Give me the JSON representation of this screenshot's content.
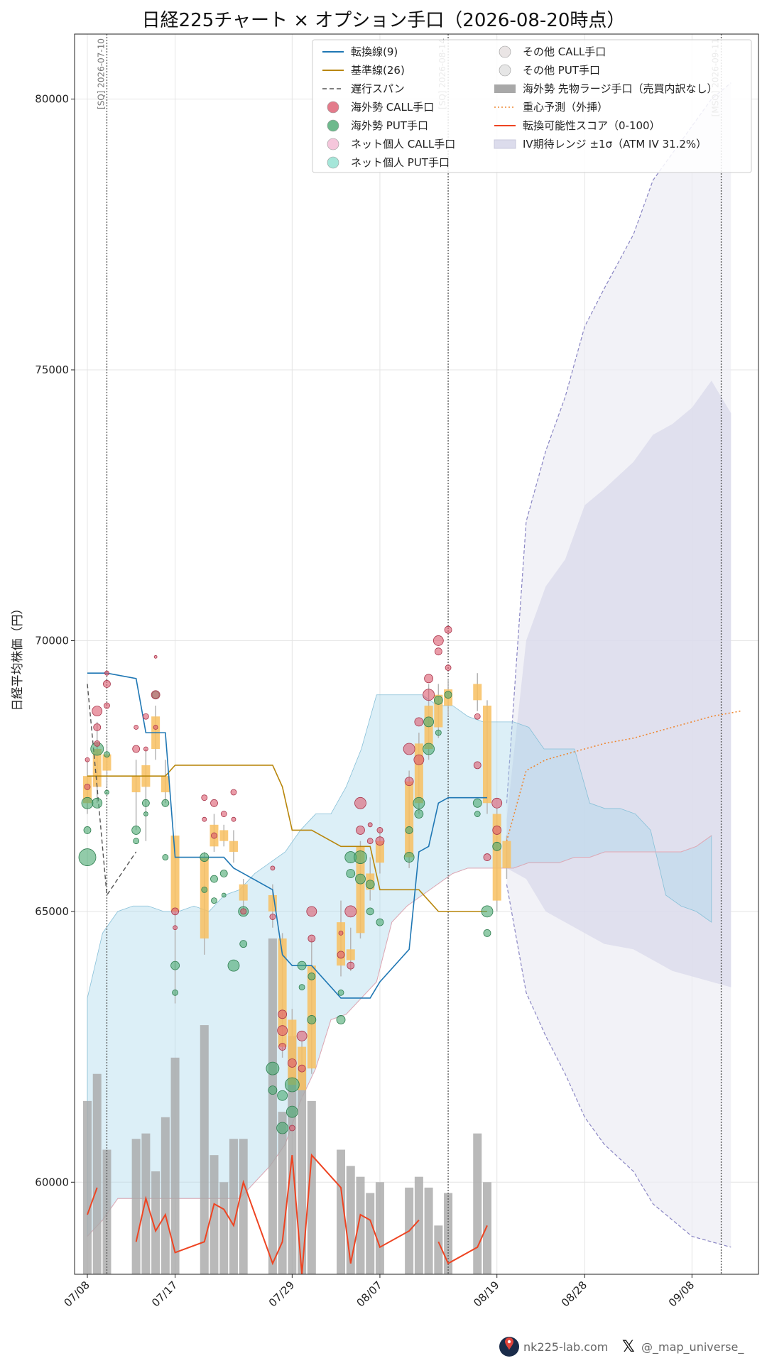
{
  "footer": {
    "site": "nk225-lab.com",
    "x_handle": "@_map_universe_"
  },
  "chart_data": {
    "type": "line",
    "title": "日経225チャート × オプション手口（2026-08-20時点）",
    "ylabel": "日経平均株価（円）",
    "xlabel": "",
    "ylim": [
      58300,
      81200
    ],
    "xlim": [
      "2026-07-08",
      "2026-09-13"
    ],
    "yticks": [
      60000,
      65000,
      70000,
      75000,
      80000
    ],
    "xticks": [
      "07/08",
      "07/17",
      "07/29",
      "08/07",
      "08/19",
      "08/28",
      "09/08"
    ],
    "grid": true,
    "legend_position": "top-right",
    "sq_lines": [
      {
        "date": "2026-07-10",
        "label": "[SQ] 2026-07-10"
      },
      {
        "date": "2026-08-14",
        "label": "[SQ] 2026-08-14"
      },
      {
        "date": "2026-09-11",
        "label": "[MSQ] 2026-09-11"
      }
    ],
    "legend": [
      {
        "label": "転換線(9)",
        "kind": "line",
        "color": "#1f77b4"
      },
      {
        "label": "基準線(26)",
        "kind": "line",
        "color": "#b8860b"
      },
      {
        "label": "遅行スパン",
        "kind": "dash",
        "color": "#555555"
      },
      {
        "label": "海外勢 CALL手口",
        "kind": "dot",
        "color": "#dc5a6e"
      },
      {
        "label": "海外勢 PUT手口",
        "kind": "dot",
        "color": "#4aa86f"
      },
      {
        "label": "ネット個人 CALL手口",
        "kind": "dot",
        "color": "#f2b8d2"
      },
      {
        "label": "ネット個人 PUT手口",
        "kind": "dot",
        "color": "#8fe0cf"
      },
      {
        "label": "その他 CALL手口",
        "kind": "dot",
        "color": "#e5dede"
      },
      {
        "label": "その他 PUT手口",
        "kind": "dot",
        "color": "#e0e0e0"
      },
      {
        "label": "海外勢 先物ラージ手口（売買内訳なし）",
        "kind": "bar",
        "color": "#a8a8a8"
      },
      {
        "label": "重心予測（外挿）",
        "kind": "dot-line",
        "color": "#ee8833"
      },
      {
        "label": "転換可能性スコア（0-100）",
        "kind": "line",
        "color": "#ee4422"
      },
      {
        "label": "IV期待レンジ ±1σ（ATM IV 31.2%）",
        "kind": "patch",
        "color": "#dcdcec"
      }
    ],
    "dates": [
      "07/08",
      "07/09",
      "07/10",
      "07/13",
      "07/14",
      "07/15",
      "07/16",
      "07/17",
      "07/20",
      "07/21",
      "07/22",
      "07/23",
      "07/24",
      "07/27",
      "07/28",
      "07/29",
      "07/30",
      "07/31",
      "08/03",
      "08/04",
      "08/05",
      "08/06",
      "08/07",
      "08/10",
      "08/11",
      "08/12",
      "08/13",
      "08/14",
      "08/17",
      "08/18",
      "08/19",
      "08/20"
    ],
    "candles": [
      {
        "o": 67500,
        "c": 67000,
        "h": 67800,
        "l": 66800
      },
      {
        "o": 68000,
        "c": 67300,
        "h": 68500,
        "l": 67000
      },
      {
        "o": 67900,
        "c": 67600,
        "h": 68100,
        "l": 67300
      },
      {
        "o": 67500,
        "c": 67200,
        "h": 67800,
        "l": 66500
      },
      {
        "o": 67700,
        "c": 67300,
        "h": 68000,
        "l": 66300
      },
      {
        "o": 68600,
        "c": 68000,
        "h": 68800,
        "l": 67800
      },
      {
        "o": 67500,
        "c": 67200,
        "h": 67800,
        "l": 67000
      },
      {
        "o": 66400,
        "c": 65000,
        "h": 66400,
        "l": 63300
      },
      {
        "o": 66000,
        "c": 64500,
        "h": 66100,
        "l": 64200
      },
      {
        "o": 66600,
        "c": 66200,
        "h": 66800,
        "l": 66100
      },
      {
        "o": 66500,
        "c": 66300,
        "h": 66600,
        "l": 66200
      },
      {
        "o": 66300,
        "c": 66100,
        "h": 66500,
        "l": 65900
      },
      {
        "o": 65500,
        "c": 65200,
        "h": 65600,
        "l": 65000
      },
      {
        "o": 65300,
        "c": 65000,
        "h": 65500,
        "l": 64700
      },
      {
        "o": 64500,
        "c": 62500,
        "h": 64600,
        "l": 62300
      },
      {
        "o": 63000,
        "c": 61800,
        "h": 63200,
        "l": 61600
      },
      {
        "o": 62500,
        "c": 61700,
        "h": 62600,
        "l": 61500
      },
      {
        "o": 64000,
        "c": 62100,
        "h": 64500,
        "l": 62000
      },
      {
        "o": 64800,
        "c": 64000,
        "h": 65200,
        "l": 63800
      },
      {
        "o": 64300,
        "c": 64100,
        "h": 64700,
        "l": 63900
      },
      {
        "o": 66200,
        "c": 64600,
        "h": 66300,
        "l": 64500
      },
      {
        "o": 65700,
        "c": 65400,
        "h": 66000,
        "l": 65200
      },
      {
        "o": 66300,
        "c": 65900,
        "h": 66500,
        "l": 65700
      },
      {
        "o": 67400,
        "c": 66000,
        "h": 67600,
        "l": 65800
      },
      {
        "o": 68100,
        "c": 67000,
        "h": 68300,
        "l": 66800
      },
      {
        "o": 68800,
        "c": 68000,
        "h": 69200,
        "l": 67800
      },
      {
        "o": 69000,
        "c": 68400,
        "h": 69200,
        "l": 68200
      },
      {
        "o": 69100,
        "c": 68800,
        "h": 69300,
        "l": 68600
      },
      {
        "o": 69200,
        "c": 68900,
        "h": 69400,
        "l": 68700
      },
      {
        "o": 68800,
        "c": 67000,
        "h": 68900,
        "l": 66800
      },
      {
        "o": 66800,
        "c": 65200,
        "h": 66900,
        "l": 65000
      },
      {
        "o": 66300,
        "c": 65800,
        "h": 66400,
        "l": 65600
      }
    ],
    "tenkan": [
      69400,
      69400,
      69400,
      69300,
      68300,
      68300,
      68300,
      66000,
      66000,
      66000,
      66000,
      65800,
      65700,
      65400,
      64200,
      64000,
      64000,
      64000,
      63400,
      63400,
      63400,
      63400,
      63700,
      64300,
      66100,
      66200,
      67000,
      67100,
      67100,
      67100
    ],
    "kijun": [
      67500,
      67500,
      67500,
      67500,
      67500,
      67500,
      67500,
      67700,
      67700,
      67700,
      67700,
      67700,
      67700,
      67700,
      67300,
      66500,
      66500,
      66500,
      66200,
      66200,
      66200,
      66200,
      65400,
      65400,
      65400,
      65200,
      65000,
      65000,
      65000,
      65000
    ],
    "chikou": [
      69200,
      67300,
      65300,
      66100
    ],
    "futures_volume": [
      61500,
      62000,
      60600,
      60800,
      60900,
      60200,
      61200,
      62300,
      62900,
      60500,
      60000,
      60800,
      60800,
      64500,
      61300,
      62700,
      62100,
      61500,
      60600,
      60300,
      60100,
      59800,
      60000,
      59900,
      60100,
      59900,
      59200,
      59800,
      60900,
      60000
    ],
    "score_segments": [
      [
        [
          0,
          59400
        ],
        [
          1,
          59900
        ]
      ],
      [
        [
          3,
          58900
        ],
        [
          4,
          59700
        ],
        [
          5,
          59100
        ],
        [
          6,
          59400
        ],
        [
          7,
          58700
        ],
        [
          8,
          58900
        ],
        [
          9,
          59600
        ],
        [
          10,
          59500
        ],
        [
          11,
          59200
        ],
        [
          12,
          60000
        ],
        [
          13,
          58500
        ],
        [
          14,
          58900
        ],
        [
          15,
          60500
        ],
        [
          16,
          58300
        ],
        [
          17,
          60500
        ],
        [
          18,
          59900
        ],
        [
          19,
          58500
        ],
        [
          20,
          59400
        ],
        [
          21,
          59300
        ],
        [
          22,
          58800
        ],
        [
          23,
          59100
        ],
        [
          24,
          59300
        ]
      ],
      [
        [
          26,
          58900
        ],
        [
          27,
          58500
        ],
        [
          28,
          58800
        ],
        [
          29,
          59200
        ]
      ]
    ],
    "cloud_upper": [
      63400,
      64600,
      65000,
      65100,
      65100,
      65000,
      65000,
      65100,
      65000,
      65300,
      65400,
      65700,
      65900,
      66100,
      66500,
      66800,
      66800,
      67300,
      68000,
      69000,
      69000,
      69000,
      69000,
      68800,
      68800,
      68600,
      68500,
      68500,
      68500,
      68400,
      68000,
      68000,
      68000,
      67000,
      66900,
      66900,
      66800,
      66500,
      65300,
      65100,
      65000,
      64800
    ],
    "cloud_lower": [
      59000,
      59300,
      59700,
      59700,
      59700,
      59700,
      59700,
      59700,
      59700,
      59700,
      59700,
      60000,
      60300,
      60700,
      61500,
      62100,
      63000,
      63100,
      63400,
      63700,
      64800,
      65100,
      65300,
      65500,
      65700,
      65800,
      65800,
      65800,
      65800,
      65900,
      65900,
      65900,
      66000,
      66000,
      66100,
      66100,
      66100,
      66100,
      66100,
      66100,
      66200,
      66400,
      66600
    ],
    "iv_dates": [
      "08/20",
      "08/22",
      "08/24",
      "08/26",
      "08/28",
      "08/30",
      "09/02",
      "09/04",
      "09/06",
      "09/08",
      "09/10",
      "09/12"
    ],
    "iv_upper_1s": [
      66700,
      70000,
      71000,
      71500,
      72500,
      72800,
      73300,
      73800,
      74000,
      74300,
      74800,
      74200
    ],
    "iv_lower_1s": [
      65800,
      65600,
      65000,
      64800,
      64600,
      64400,
      64300,
      64100,
      63900,
      63800,
      63700,
      63600
    ],
    "iv_upper_2s": [
      67000,
      72200,
      73500,
      74500,
      75800,
      76500,
      77500,
      78500,
      79000,
      79500,
      80000,
      80300
    ],
    "iv_lower_2s": [
      65500,
      63500,
      62700,
      62000,
      61200,
      60700,
      60200,
      59600,
      59300,
      59000,
      58900,
      58800
    ],
    "forecast": [
      [
        "08/20",
        66300
      ],
      [
        "08/22",
        67600
      ],
      [
        "08/24",
        67800
      ],
      [
        "08/26",
        67900
      ],
      [
        "08/28",
        68000
      ],
      [
        "08/30",
        68100
      ],
      [
        "09/02",
        68200
      ],
      [
        "09/04",
        68300
      ],
      [
        "09/06",
        68400
      ],
      [
        "09/08",
        68500
      ],
      [
        "09/10",
        68600
      ],
      [
        "09/13",
        68700
      ]
    ],
    "call_flows": [
      [
        0,
        67300,
        4
      ],
      [
        0,
        67800,
        3
      ],
      [
        1,
        68700,
        7
      ],
      [
        1,
        68400,
        5
      ],
      [
        1,
        68100,
        4
      ],
      [
        2,
        69400,
        3
      ],
      [
        2,
        69200,
        5
      ],
      [
        2,
        68800,
        4
      ],
      [
        3,
        68000,
        5
      ],
      [
        3,
        68400,
        3
      ],
      [
        4,
        68600,
        4
      ],
      [
        4,
        68000,
        3
      ],
      [
        5,
        69000,
        6
      ],
      [
        5,
        69700,
        2
      ],
      [
        5,
        68400,
        3
      ],
      [
        7,
        65000,
        5
      ],
      [
        7,
        64700,
        3
      ],
      [
        8,
        67100,
        4
      ],
      [
        8,
        66700,
        3
      ],
      [
        9,
        67000,
        5
      ],
      [
        9,
        66400,
        4
      ],
      [
        10,
        66800,
        4
      ],
      [
        11,
        67200,
        4
      ],
      [
        11,
        66700,
        3
      ],
      [
        12,
        65000,
        4
      ],
      [
        13,
        65800,
        3
      ],
      [
        13,
        64900,
        4
      ],
      [
        14,
        63100,
        6
      ],
      [
        14,
        62800,
        7
      ],
      [
        14,
        62500,
        5
      ],
      [
        15,
        61000,
        4
      ],
      [
        15,
        62200,
        6
      ],
      [
        16,
        62700,
        7
      ],
      [
        16,
        62100,
        5
      ],
      [
        17,
        65000,
        7
      ],
      [
        17,
        64500,
        5
      ],
      [
        18,
        64200,
        5
      ],
      [
        18,
        64600,
        3
      ],
      [
        19,
        65000,
        8
      ],
      [
        19,
        64000,
        5
      ],
      [
        20,
        67000,
        8
      ],
      [
        20,
        66500,
        6
      ],
      [
        21,
        66300,
        4
      ],
      [
        21,
        66600,
        3
      ],
      [
        22,
        66300,
        6
      ],
      [
        22,
        66500,
        4
      ],
      [
        23,
        68000,
        8
      ],
      [
        23,
        67400,
        6
      ],
      [
        24,
        68500,
        6
      ],
      [
        24,
        67800,
        7
      ],
      [
        25,
        69000,
        8
      ],
      [
        25,
        69300,
        6
      ],
      [
        26,
        69800,
        5
      ],
      [
        26,
        70000,
        7
      ],
      [
        27,
        70200,
        5
      ],
      [
        27,
        69500,
        4
      ],
      [
        28,
        67700,
        5
      ],
      [
        28,
        68600,
        4
      ],
      [
        29,
        66000,
        5
      ],
      [
        30,
        67000,
        7
      ],
      [
        30,
        66500,
        6
      ]
    ],
    "put_flows": [
      [
        0,
        66000,
        12
      ],
      [
        0,
        67000,
        8
      ],
      [
        0,
        66500,
        5
      ],
      [
        1,
        68000,
        9
      ],
      [
        1,
        67000,
        7
      ],
      [
        2,
        67900,
        4
      ],
      [
        2,
        67200,
        3
      ],
      [
        3,
        66500,
        6
      ],
      [
        3,
        66300,
        4
      ],
      [
        4,
        67000,
        5
      ],
      [
        4,
        66800,
        3
      ],
      [
        5,
        69000,
        5
      ],
      [
        6,
        67000,
        5
      ],
      [
        6,
        66000,
        4
      ],
      [
        7,
        64000,
        6
      ],
      [
        7,
        63500,
        4
      ],
      [
        8,
        66000,
        6
      ],
      [
        8,
        65400,
        4
      ],
      [
        9,
        65600,
        5
      ],
      [
        9,
        65200,
        4
      ],
      [
        10,
        65700,
        5
      ],
      [
        10,
        65300,
        3
      ],
      [
        11,
        64000,
        8
      ],
      [
        12,
        65000,
        7
      ],
      [
        12,
        64400,
        5
      ],
      [
        13,
        62100,
        9
      ],
      [
        13,
        61700,
        6
      ],
      [
        14,
        61000,
        8
      ],
      [
        14,
        61600,
        7
      ],
      [
        15,
        61800,
        10
      ],
      [
        15,
        61300,
        8
      ],
      [
        16,
        64000,
        6
      ],
      [
        16,
        63600,
        4
      ],
      [
        17,
        63800,
        5
      ],
      [
        17,
        63000,
        6
      ],
      [
        18,
        63000,
        6
      ],
      [
        18,
        63500,
        4
      ],
      [
        19,
        66000,
        8
      ],
      [
        19,
        65700,
        6
      ],
      [
        20,
        66000,
        9
      ],
      [
        20,
        65600,
        7
      ],
      [
        21,
        65500,
        6
      ],
      [
        21,
        65000,
        5
      ],
      [
        22,
        64800,
        5
      ],
      [
        23,
        66000,
        7
      ],
      [
        23,
        66500,
        5
      ],
      [
        24,
        67000,
        8
      ],
      [
        24,
        66800,
        6
      ],
      [
        25,
        68500,
        7
      ],
      [
        25,
        68000,
        8
      ],
      [
        26,
        68900,
        6
      ],
      [
        26,
        68300,
        4
      ],
      [
        27,
        69000,
        5
      ],
      [
        28,
        67000,
        6
      ],
      [
        28,
        66800,
        4
      ],
      [
        29,
        65000,
        8
      ],
      [
        29,
        64600,
        5
      ],
      [
        30,
        66200,
        6
      ]
    ]
  }
}
